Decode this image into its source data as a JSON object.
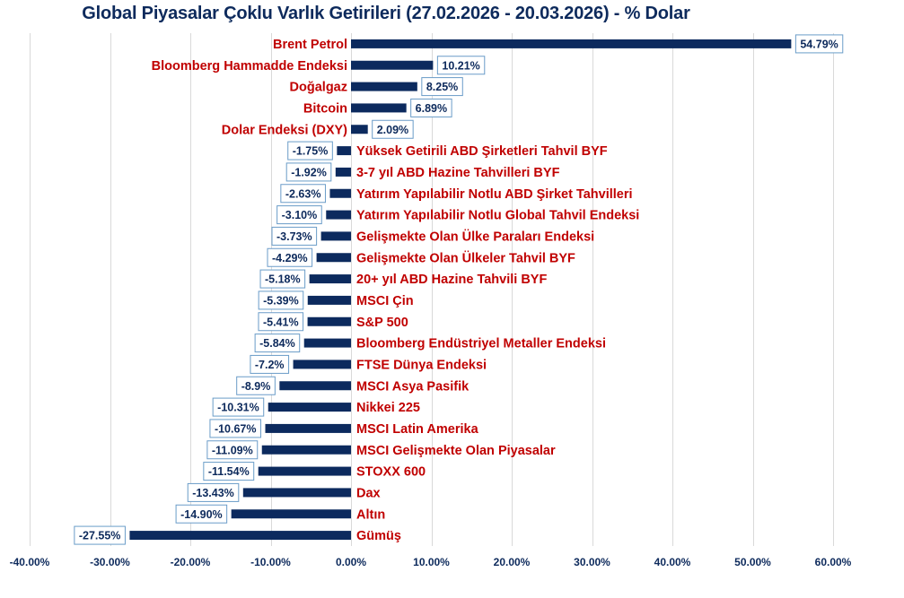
{
  "chart_data": {
    "type": "bar",
    "orientation": "horizontal",
    "title": "Global Piyasalar Çoklu Varlık Getirileri (27.02.2026 - 20.03.2026) - % Dolar",
    "xlabel": "",
    "ylabel": "",
    "xlim": [
      -40,
      60
    ],
    "grid": true,
    "x_ticks": [
      -40,
      -30,
      -20,
      -10,
      0,
      10,
      20,
      30,
      40,
      50,
      60
    ],
    "x_tick_labels": [
      "-40.00%",
      "-30.00%",
      "-20.00%",
      "-10.00%",
      "0.00%",
      "10.00%",
      "20.00%",
      "30.00%",
      "40.00%",
      "50.00%",
      "60.00%"
    ],
    "categories": [
      "Brent Petrol",
      "Bloomberg Hammadde Endeksi",
      "Doğalgaz",
      "Bitcoin",
      "Dolar Endeksi (DXY)",
      "Yüksek Getirili ABD Şirketleri Tahvil BYF",
      "3-7 yıl ABD Hazine Tahvilleri BYF",
      "Yatırım Yapılabilir Notlu  ABD Şirket Tahvilleri",
      "Yatırım Yapılabilir Notlu Global Tahvil Endeksi",
      "Gelişmekte Olan Ülke Paraları Endeksi",
      "Gelişmekte Olan Ülkeler Tahvil BYF",
      "20+ yıl ABD Hazine Tahvili BYF",
      "MSCI Çin",
      "S&P 500",
      "Bloomberg Endüstriyel Metaller Endeksi",
      "FTSE Dünya Endeksi",
      "MSCI Asya Pasifik",
      "Nikkei 225",
      "MSCI Latin Amerika",
      "MSCI Gelişmekte Olan Piyasalar",
      "STOXX 600",
      "Dax",
      "Altın",
      "Gümüş"
    ],
    "values": [
      54.79,
      10.21,
      8.25,
      6.89,
      2.09,
      -1.75,
      -1.92,
      -2.63,
      -3.1,
      -3.73,
      -4.29,
      -5.18,
      -5.39,
      -5.41,
      -5.84,
      -7.2,
      -8.9,
      -10.31,
      -10.67,
      -11.09,
      -11.54,
      -13.43,
      -14.9,
      -27.55
    ],
    "data_labels": [
      "54.79%",
      "10.21%",
      "8.25%",
      "6.89%",
      "2.09%",
      "-1.75%",
      "-1.92%",
      "-2.63%",
      "-3.10%",
      "-3.73%",
      "-4.29%",
      "-5.18%",
      "-5.39%",
      "-5.41%",
      "-5.84%",
      "-7.2%",
      "-8.9%",
      "-10.31%",
      "-10.67%",
      "-11.09%",
      "-11.54%",
      "-13.43%",
      "-14.90%",
      "-27.55%"
    ],
    "colors": {
      "bar": "#0c2a5e",
      "category_label": "#c00000",
      "data_label": "#0d2a5c",
      "label_border": "#6a9cc8",
      "grid": "#d9d9d9"
    }
  }
}
